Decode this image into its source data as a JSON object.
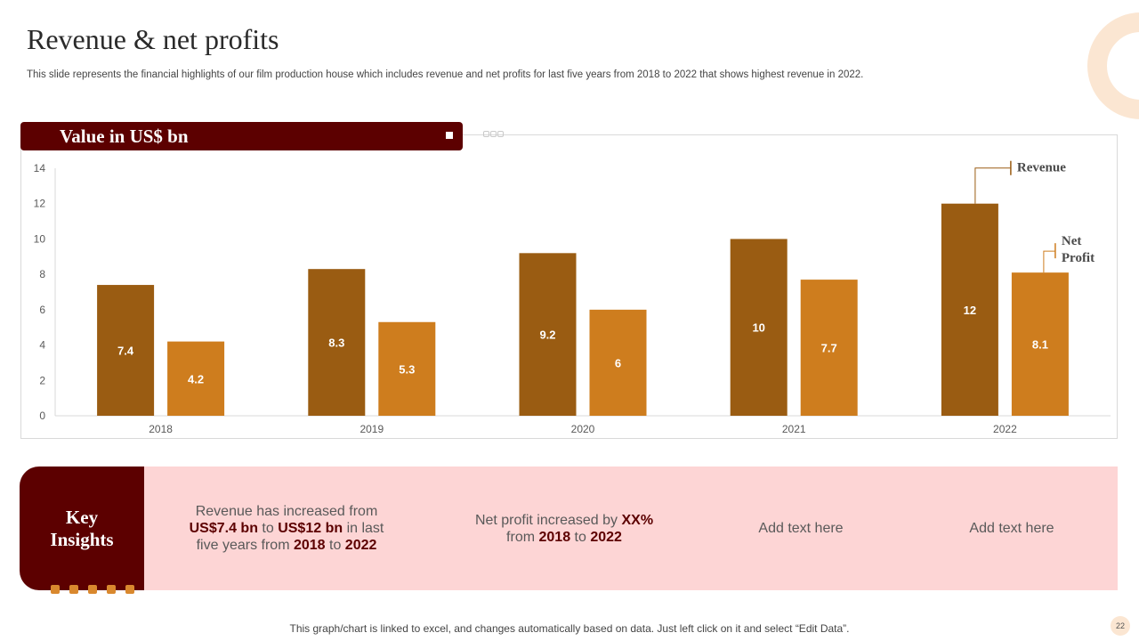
{
  "slide": {
    "title": "Revenue & net profits",
    "subtitle": "This slide represents the financial highlights of our film production house which includes revenue and net profits for last five years from 2018 to 2022 that shows highest revenue in 2022.",
    "chart_header": "Value in US$ bn",
    "footer": "This graph/chart is linked to excel, and changes automatically based on data. Just left click on it and select “Edit Data”.",
    "page_number": "22"
  },
  "colors": {
    "revenue": "#9a5c12",
    "net_profit": "#ce7d1e",
    "header": "#5c0000",
    "insight_bg": "#fdd5d5"
  },
  "chart_data": {
    "type": "bar",
    "title": "Value in US$ bn",
    "categories": [
      "2018",
      "2019",
      "2020",
      "2021",
      "2022"
    ],
    "series": [
      {
        "name": "Revenue",
        "values": [
          7.4,
          8.3,
          9.2,
          10,
          12
        ],
        "labels": [
          "7.4",
          "8.3",
          "9.2",
          "10",
          "12"
        ]
      },
      {
        "name": "Net Profit",
        "values": [
          4.2,
          5.3,
          6,
          7.7,
          8.1
        ],
        "labels": [
          "4.2",
          "5.3",
          "6",
          "7.7",
          "8.1"
        ]
      }
    ],
    "yticks": [
      "0",
      "2",
      "4",
      "6",
      "8",
      "10",
      "12",
      "14"
    ],
    "ylim": [
      0,
      14
    ],
    "xlabel": "",
    "ylabel": "",
    "grid": false,
    "annotations": {
      "revenue": "Revenue",
      "net_profit_line1": "Net",
      "net_profit_line2": "Profit"
    }
  },
  "insights": {
    "label": "Key Insights",
    "item1": {
      "p1": "Revenue has increased from ",
      "b1": "US$7.4 bn",
      "p2": " to ",
      "b2": "US$12 bn",
      "p3": " in last five years from ",
      "b3": "2018",
      "p4": " to ",
      "b4": "2022"
    },
    "item2": {
      "p1": "Net profit increased by ",
      "b1": "XX%",
      "p2": " from ",
      "b2": "2018",
      "p3": " to ",
      "b3": "2022"
    },
    "item3": "Add text here",
    "item4": "Add text here"
  }
}
